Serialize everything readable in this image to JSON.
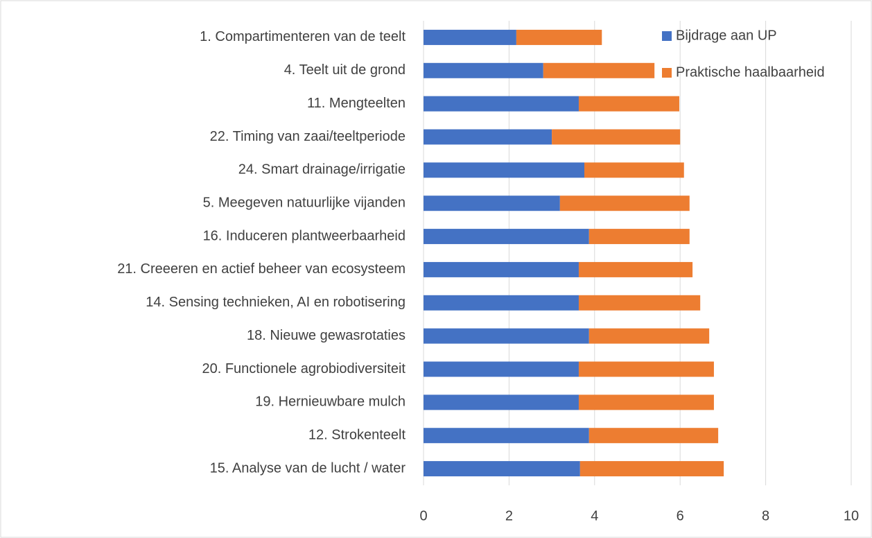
{
  "chart_data": {
    "type": "stacked_barh",
    "categories": [
      "1. Compartimenteren van de teelt",
      "4. Teelt uit de grond",
      "11. Mengteelten",
      "22. Timing van zaai/teeltperiode",
      "24. Smart drainage/irrigatie",
      "5. Meegeven natuurlijke vijanden",
      "16. Induceren plantweerbaarheid",
      "21. Creeeren en actief beheer van ecosysteem",
      "14. Sensing technieken, AI en robotisering",
      "18. Nieuwe gewasrotaties",
      "20. Functionele agrobiodiversiteit",
      "19. Hernieuwbare mulch",
      "12. Strokenteelt",
      "15. Analyse van de lucht / water"
    ],
    "series": [
      {
        "name": "Bijdrage aan UP",
        "color": "#4472c4",
        "values": [
          2.17,
          2.8,
          3.63,
          3.0,
          3.76,
          3.19,
          3.87,
          3.63,
          3.63,
          3.87,
          3.63,
          3.63,
          3.87,
          3.66
        ]
      },
      {
        "name": "Praktische haalbaarheid",
        "color": "#ed7d31",
        "values": [
          2.0,
          2.6,
          2.35,
          3.0,
          2.33,
          3.03,
          2.35,
          2.66,
          2.84,
          2.81,
          3.16,
          3.16,
          3.02,
          3.36
        ]
      }
    ],
    "xlim": [
      0,
      10
    ],
    "xticks": [
      0,
      2,
      4,
      6,
      8,
      10
    ],
    "grid": true,
    "legend": "top-right"
  }
}
